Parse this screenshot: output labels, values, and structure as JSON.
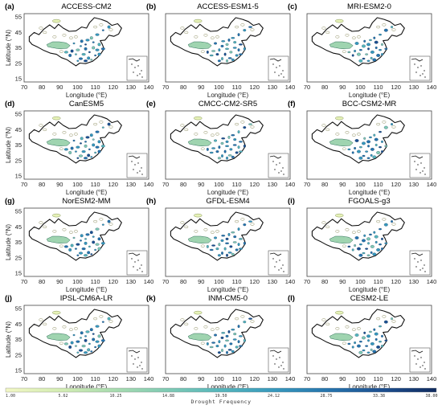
{
  "figure": {
    "panels": [
      {
        "letter": "(a)",
        "model": "ACCESS-CM2"
      },
      {
        "letter": "(b)",
        "model": "ACCESS-ESM1-5"
      },
      {
        "letter": "(c)",
        "model": "MRI-ESM2-0"
      },
      {
        "letter": "(d)",
        "model": "CanESM5"
      },
      {
        "letter": "(e)",
        "model": "CMCC-CM2-SR5"
      },
      {
        "letter": "(f)",
        "model": "BCC-CSM2-MR"
      },
      {
        "letter": "(g)",
        "model": "NorESM2-MM"
      },
      {
        "letter": "(h)",
        "model": "GFDL-ESM4"
      },
      {
        "letter": "(i)",
        "model": "FGOALS-g3"
      },
      {
        "letter": "(j)",
        "model": "IPSL-CM6A-LR"
      },
      {
        "letter": "(k)",
        "model": "INM-CM5-0"
      },
      {
        "letter": "(l)",
        "model": "CESM2-LE"
      }
    ],
    "y_axis_label": "Latitude (°N)",
    "x_axis_label": "Longitude (°E)",
    "y_ticks": [
      "55",
      "45",
      "35",
      "25",
      "15"
    ],
    "x_ticks": [
      "70",
      "80",
      "90",
      "100",
      "110",
      "120",
      "130",
      "140"
    ],
    "colorbar": {
      "label": "Drought Frequency",
      "ticks": [
        "1.00",
        "5.62",
        "10.25",
        "14.88",
        "19.50",
        "24.12",
        "28.75",
        "33.38",
        "38.00"
      ],
      "colors": [
        "#f2f7c4",
        "#d4edb3",
        "#a9dcb0",
        "#7fcab4",
        "#55b6bc",
        "#3698bd",
        "#2573ad",
        "#1c4f90",
        "#0f2a5e"
      ]
    }
  }
}
